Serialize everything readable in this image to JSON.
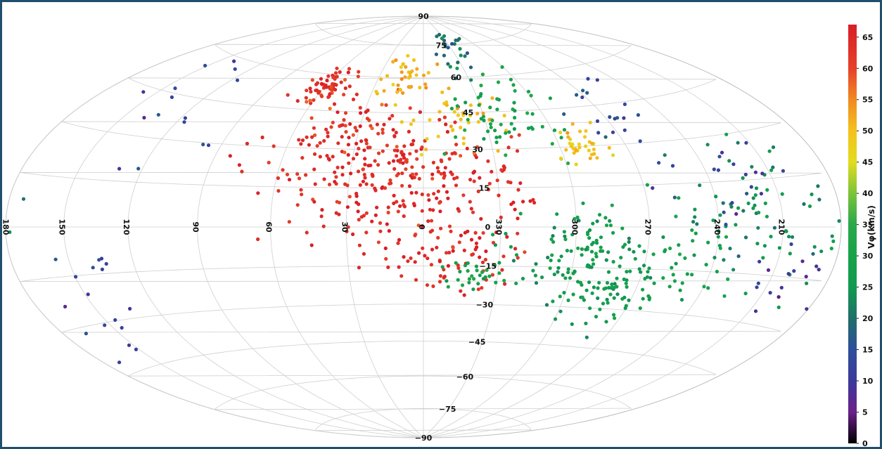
{
  "chart_data": {
    "type": "scatter",
    "projection": "aitoff/hammer all-sky",
    "grid": true,
    "parallels": [
      75,
      60,
      45,
      30,
      15,
      0,
      -15,
      -30,
      -45,
      -60,
      -75
    ],
    "parallel_labels": [
      "90",
      "75",
      "60",
      "45",
      "30",
      "15",
      "0",
      "−15",
      "−30",
      "−45",
      "−60",
      "−75",
      "−90"
    ],
    "meridian_labels": [
      "150",
      "120",
      "90",
      "60",
      "30",
      "0",
      "330",
      "300",
      "270",
      "240",
      "210",
      "180"
    ],
    "colorbar": {
      "label": "Vφ(km/s)",
      "ticks": [
        0,
        5,
        10,
        15,
        20,
        25,
        30,
        35,
        40,
        45,
        50,
        55,
        60,
        65
      ],
      "range": [
        0,
        67
      ]
    },
    "clusters": [
      {
        "lon": 58,
        "lat": 55,
        "v": 63,
        "n": 60,
        "spread": 6
      },
      {
        "lon": 40,
        "lat": 30,
        "v": 63,
        "n": 120,
        "spread": 18
      },
      {
        "lon": 15,
        "lat": 10,
        "v": 64,
        "n": 140,
        "spread": 20
      },
      {
        "lon": 350,
        "lat": 20,
        "v": 64,
        "n": 90,
        "spread": 18
      },
      {
        "lon": 345,
        "lat": -8,
        "v": 64,
        "n": 70,
        "spread": 12
      },
      {
        "lon": 10,
        "lat": 60,
        "v": 52,
        "n": 40,
        "spread": 10
      },
      {
        "lon": 345,
        "lat": 40,
        "v": 50,
        "n": 40,
        "spread": 12
      },
      {
        "lon": 320,
        "lat": 45,
        "v": 30,
        "n": 60,
        "spread": 14
      },
      {
        "lon": 290,
        "lat": 30,
        "v": 48,
        "n": 35,
        "spread": 6
      },
      {
        "lon": 300,
        "lat": -10,
        "v": 27,
        "n": 110,
        "spread": 14
      },
      {
        "lon": 280,
        "lat": -25,
        "v": 27,
        "n": 60,
        "spread": 12
      },
      {
        "lon": 250,
        "lat": -10,
        "v": 28,
        "n": 50,
        "spread": 16
      },
      {
        "lon": 220,
        "lat": 0,
        "v": 24,
        "n": 70,
        "spread": 20
      },
      {
        "lon": 340,
        "lat": -18,
        "v": 30,
        "n": 25,
        "spread": 5
      },
      {
        "lon": 330,
        "lat": 70,
        "v": 20,
        "n": 25,
        "spread": 10
      },
      {
        "lon": 270,
        "lat": 40,
        "v": 14,
        "n": 20,
        "spread": 12
      },
      {
        "lon": 130,
        "lat": 45,
        "v": 12,
        "n": 15,
        "spread": 20
      },
      {
        "lon": 150,
        "lat": -25,
        "v": 12,
        "n": 18,
        "spread": 15
      },
      {
        "lon": 230,
        "lat": 15,
        "v": 12,
        "n": 20,
        "spread": 15
      },
      {
        "lon": 200,
        "lat": -15,
        "v": 10,
        "n": 15,
        "spread": 10
      }
    ]
  }
}
